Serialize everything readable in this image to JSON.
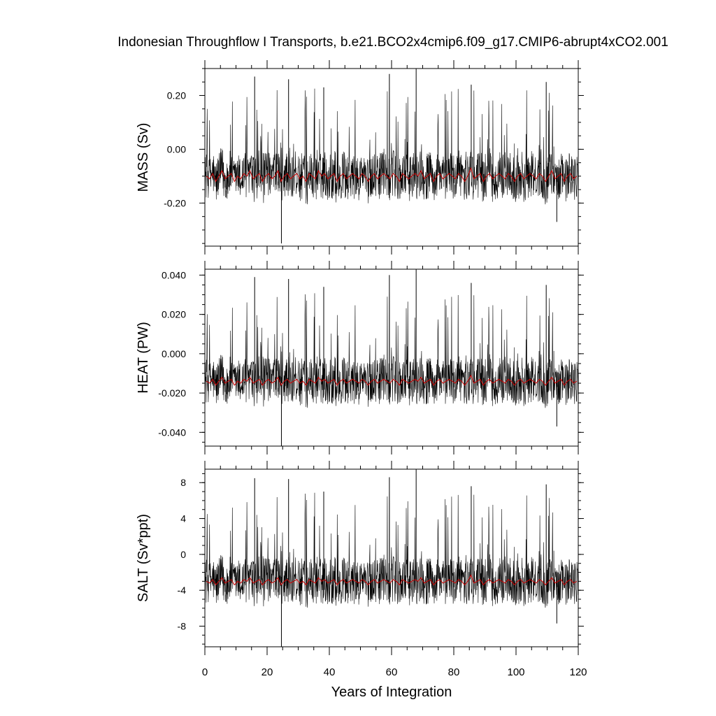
{
  "chart_data": {
    "type": "line",
    "title": "Indonesian Throughflow I Transports, b.e21.BCO2x4cmip6.f09_g17.CMIP6-abrupt4xCO2.001",
    "xlabel": "Years of Integration",
    "xlim": [
      0,
      120
    ],
    "x_ticks": [
      "0",
      "20",
      "40",
      "60",
      "80",
      "100",
      "120"
    ],
    "colors": {
      "monthly": "#000000",
      "annual_mean": "#cc0000"
    },
    "panels": [
      {
        "ylabel": "MASS (Sv)",
        "ylim": [
          -0.36,
          0.3
        ],
        "y_ticks": [
          {
            "value": 0.2,
            "label": "0.20"
          },
          {
            "value": 0.0,
            "label": "0.00"
          },
          {
            "value": -0.2,
            "label": "-0.20"
          }
        ],
        "series": [
          {
            "values": [
              -0.1,
              -0.11,
              -0.09,
              -0.12,
              -0.1,
              -0.08,
              -0.11,
              -0.1,
              -0.09,
              -0.12,
              -0.1,
              -0.11,
              -0.09,
              -0.1,
              -0.08,
              -0.11,
              -0.1,
              -0.09,
              -0.12,
              -0.1,
              -0.09,
              -0.11,
              -0.1,
              -0.08,
              -0.12,
              -0.1,
              -0.09,
              -0.11,
              -0.1,
              -0.09,
              -0.11,
              -0.1,
              -0.12,
              -0.09,
              -0.1,
              -0.11,
              -0.08,
              -0.1,
              -0.09,
              -0.11,
              -0.1,
              -0.09,
              -0.12,
              -0.1,
              -0.09,
              -0.11,
              -0.1,
              -0.09,
              -0.1,
              -0.11,
              -0.09,
              -0.1,
              -0.12,
              -0.1,
              -0.09,
              -0.11,
              -0.1,
              -0.09,
              -0.1,
              -0.11,
              -0.09,
              -0.1,
              -0.12,
              -0.09,
              -0.1,
              -0.11,
              -0.1,
              -0.09,
              -0.1,
              -0.08,
              -0.11,
              -0.1,
              -0.09,
              -0.12,
              -0.1,
              -0.09,
              -0.11,
              -0.1,
              -0.09,
              -0.1,
              -0.11,
              -0.09,
              -0.1,
              -0.12,
              -0.1,
              -0.07,
              -0.11,
              -0.1,
              -0.09,
              -0.12,
              -0.1,
              -0.09,
              -0.11,
              -0.1,
              -0.09,
              -0.1,
              -0.11,
              -0.09,
              -0.1,
              -0.12,
              -0.1,
              -0.09,
              -0.11,
              -0.1,
              -0.09,
              -0.1,
              -0.11,
              -0.09,
              -0.1,
              -0.12,
              -0.1,
              -0.08,
              -0.11,
              -0.1,
              -0.09,
              -0.12,
              -0.1,
              -0.09,
              -0.11,
              -0.1
            ]
          },
          {
            "spikes": [
              {
                "x": 24.6,
                "value": -0.35
              },
              {
                "x": 16.0,
                "value": 0.27
              },
              {
                "x": 26.9,
                "value": 0.26
              },
              {
                "x": 59.3,
                "value": 0.28
              },
              {
                "x": 67.9,
                "value": 0.3
              },
              {
                "x": 85.6,
                "value": 0.24
              },
              {
                "x": 38.2,
                "value": 0.23
              },
              {
                "x": 109.7,
                "value": 0.25
              },
              {
                "x": 113.1,
                "value": -0.27
              }
            ]
          }
        ]
      },
      {
        "ylabel": "HEAT (PW)",
        "ylim": [
          -0.047,
          0.043
        ],
        "y_ticks": [
          {
            "value": 0.04,
            "label": "0.040"
          },
          {
            "value": 0.02,
            "label": "0.020"
          },
          {
            "value": 0.0,
            "label": "0.000"
          },
          {
            "value": -0.02,
            "label": "-0.020"
          },
          {
            "value": -0.04,
            "label": "-0.040"
          }
        ],
        "series": [
          {
            "values": [
              -0.014,
              -0.015,
              -0.013,
              -0.016,
              -0.014,
              -0.012,
              -0.015,
              -0.014,
              -0.013,
              -0.016,
              -0.014,
              -0.015,
              -0.013,
              -0.014,
              -0.012,
              -0.015,
              -0.014,
              -0.013,
              -0.016,
              -0.014,
              -0.013,
              -0.015,
              -0.014,
              -0.012,
              -0.016,
              -0.014,
              -0.013,
              -0.015,
              -0.014,
              -0.013,
              -0.015,
              -0.014,
              -0.016,
              -0.013,
              -0.014,
              -0.015,
              -0.012,
              -0.014,
              -0.013,
              -0.015,
              -0.014,
              -0.013,
              -0.016,
              -0.014,
              -0.013,
              -0.015,
              -0.014,
              -0.013,
              -0.014,
              -0.015,
              -0.013,
              -0.014,
              -0.016,
              -0.014,
              -0.013,
              -0.015,
              -0.014,
              -0.013,
              -0.014,
              -0.015,
              -0.013,
              -0.014,
              -0.016,
              -0.013,
              -0.014,
              -0.015,
              -0.014,
              -0.013,
              -0.014,
              -0.012,
              -0.015,
              -0.014,
              -0.013,
              -0.016,
              -0.014,
              -0.013,
              -0.015,
              -0.014,
              -0.013,
              -0.014,
              -0.015,
              -0.013,
              -0.014,
              -0.016,
              -0.014,
              -0.011,
              -0.015,
              -0.014,
              -0.013,
              -0.016,
              -0.014,
              -0.013,
              -0.015,
              -0.014,
              -0.013,
              -0.014,
              -0.015,
              -0.013,
              -0.014,
              -0.016,
              -0.014,
              -0.013,
              -0.015,
              -0.014,
              -0.013,
              -0.014,
              -0.015,
              -0.013,
              -0.014,
              -0.016,
              -0.014,
              -0.012,
              -0.015,
              -0.014,
              -0.013,
              -0.016,
              -0.014,
              -0.013,
              -0.015,
              -0.014
            ]
          },
          {
            "spikes": [
              {
                "x": 24.6,
                "value": -0.047
              },
              {
                "x": 16.0,
                "value": 0.039
              },
              {
                "x": 26.9,
                "value": 0.038
              },
              {
                "x": 59.3,
                "value": 0.04
              },
              {
                "x": 67.9,
                "value": 0.043
              },
              {
                "x": 85.6,
                "value": 0.036
              },
              {
                "x": 38.2,
                "value": 0.034
              },
              {
                "x": 109.7,
                "value": 0.035
              },
              {
                "x": 113.1,
                "value": -0.037
              }
            ]
          }
        ]
      },
      {
        "ylabel": "SALT (Sv*ppt)",
        "ylim": [
          -10.3,
          9.5
        ],
        "y_ticks": [
          {
            "value": 8,
            "label": "8"
          },
          {
            "value": 4,
            "label": "4"
          },
          {
            "value": 0,
            "label": "0"
          },
          {
            "value": -4,
            "label": "-4"
          },
          {
            "value": -8,
            "label": "-8"
          }
        ],
        "series": [
          {
            "values": [
              -3.0,
              -3.2,
              -2.8,
              -3.4,
              -3.0,
              -2.6,
              -3.2,
              -3.0,
              -2.8,
              -3.4,
              -3.0,
              -3.2,
              -2.8,
              -3.0,
              -2.6,
              -3.2,
              -3.0,
              -2.8,
              -3.4,
              -3.0,
              -2.8,
              -3.2,
              -3.0,
              -2.6,
              -3.4,
              -3.0,
              -2.8,
              -3.2,
              -3.0,
              -2.8,
              -3.2,
              -3.0,
              -3.4,
              -2.8,
              -3.0,
              -3.2,
              -2.6,
              -3.0,
              -2.8,
              -3.2,
              -3.0,
              -2.8,
              -3.4,
              -3.0,
              -2.8,
              -3.2,
              -3.0,
              -2.8,
              -3.0,
              -3.2,
              -2.8,
              -3.0,
              -3.4,
              -3.0,
              -2.8,
              -3.2,
              -3.0,
              -2.8,
              -3.0,
              -3.2,
              -2.8,
              -3.0,
              -3.4,
              -2.8,
              -3.0,
              -3.2,
              -3.0,
              -2.8,
              -3.0,
              -2.6,
              -3.2,
              -3.0,
              -2.8,
              -3.4,
              -3.0,
              -2.8,
              -3.2,
              -3.0,
              -2.8,
              -3.0,
              -3.2,
              -2.8,
              -3.0,
              -3.4,
              -3.0,
              -2.3,
              -3.2,
              -3.0,
              -2.8,
              -3.4,
              -3.0,
              -2.8,
              -3.2,
              -3.0,
              -2.8,
              -3.0,
              -3.2,
              -2.8,
              -3.0,
              -3.4,
              -3.0,
              -2.8,
              -3.2,
              -3.0,
              -2.8,
              -3.0,
              -3.2,
              -2.8,
              -3.0,
              -3.4,
              -3.0,
              -2.6,
              -3.2,
              -3.0,
              -2.8,
              -3.4,
              -3.0,
              -2.8,
              -3.2,
              -3.0
            ]
          },
          {
            "spikes": [
              {
                "x": 24.6,
                "value": -10.3
              },
              {
                "x": 16.0,
                "value": 8.5
              },
              {
                "x": 26.9,
                "value": 8.4
              },
              {
                "x": 59.3,
                "value": 8.6
              },
              {
                "x": 67.9,
                "value": 9.5
              },
              {
                "x": 85.6,
                "value": 7.6
              },
              {
                "x": 38.2,
                "value": 7.0
              },
              {
                "x": 109.7,
                "value": 7.8
              },
              {
                "x": 113.1,
                "value": -7.7
              }
            ]
          }
        ]
      }
    ]
  }
}
